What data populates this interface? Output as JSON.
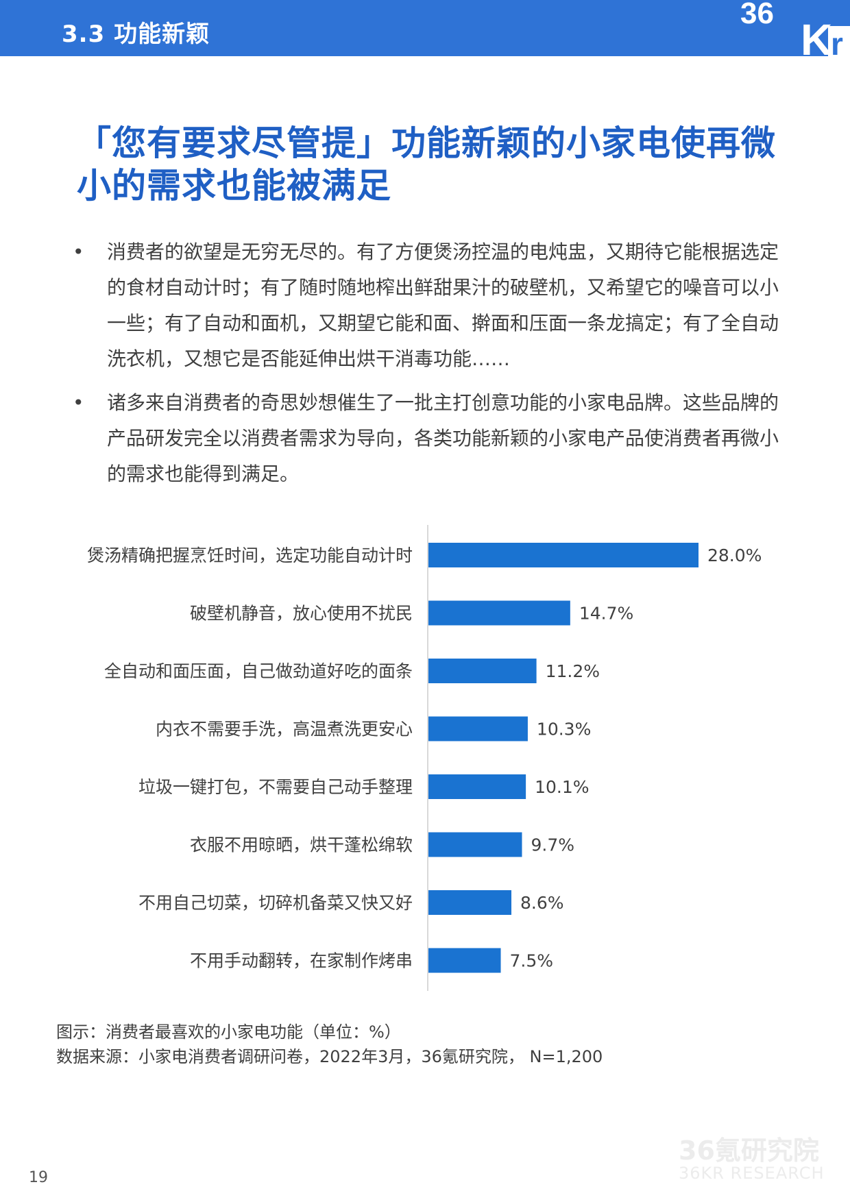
{
  "header": {
    "section_label": "3.3 功能新颖",
    "brand": "36Kr",
    "bar_color": "#2f73d6"
  },
  "headline": "「您有要求尽管提」功能新颖的小家电使再微小的需求也能被满足",
  "bullets": [
    "消费者的欲望是无穷无尽的。有了方便煲汤控温的电炖盅，又期待它能根据选定的食材自动计时；有了随时随地榨出鲜甜果汁的破壁机，又希望它的噪音可以小一些；有了自动和面机，又期望它能和面、擀面和压面一条龙搞定；有了全自动洗衣机，又想它是否能延伸出烘干消毒功能……",
    "诸多来自消费者的奇思妙想催生了一批主打创意功能的小家电品牌。这些品牌的产品研发完全以消费者需求为导向，各类功能新颖的小家电产品使消费者再微小的需求也能得到满足。"
  ],
  "bullet_symbol": "•",
  "chart_data": {
    "type": "bar",
    "orientation": "horizontal",
    "categories": [
      "煲汤精确把握烹饪时间，选定功能自动计时",
      "破壁机静音，放心使用不扰民",
      "全自动和面压面，自己做劲道好吃的面条",
      "内衣不需要手洗，高温煮洗更安心",
      "垃圾一键打包，不需要自己动手整理",
      "衣服不用晾晒，烘干蓬松绵软",
      "不用自己切菜，切碎机备菜又快又好",
      "不用手动翻转，在家制作烤串"
    ],
    "values": [
      28.0,
      14.7,
      11.2,
      10.3,
      10.1,
      9.7,
      8.6,
      7.5
    ],
    "value_labels": [
      "28.0%",
      "14.7%",
      "11.2%",
      "10.3%",
      "10.1%",
      "9.7%",
      "8.6%",
      "7.5%"
    ],
    "xlim": [
      0,
      30
    ],
    "bar_color": "#1a73d1",
    "grid": false,
    "legend": "none"
  },
  "caption": {
    "figure": "图示：消费者最喜欢的小家电功能（单位：%）",
    "source": "数据来源：小家电消费者调研问卷，2022年3月，36氪研究院， N=1,200"
  },
  "watermark": {
    "cn": "36氪研究院",
    "en": "36KR RESEARCH"
  },
  "page_number": "19"
}
